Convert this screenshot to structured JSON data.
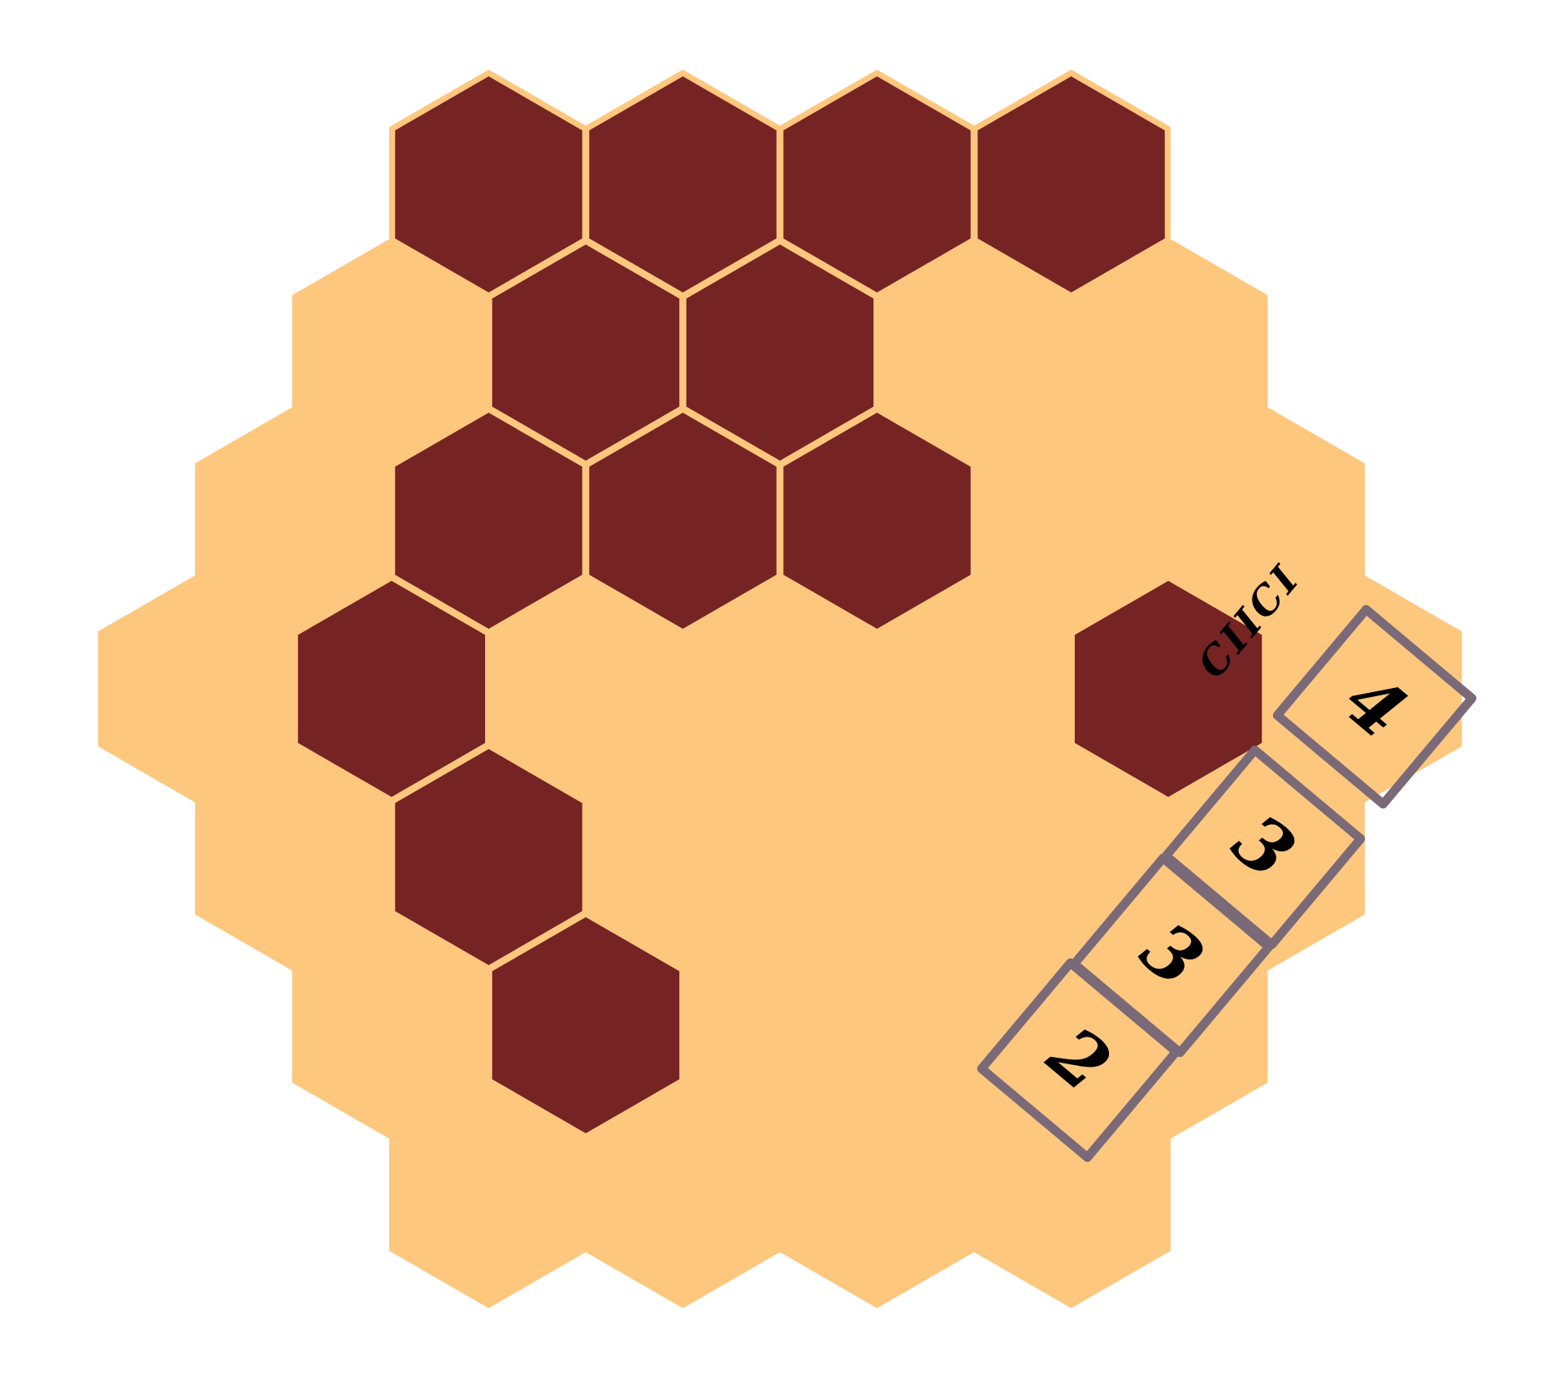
{
  "colors": {
    "background": "#ffffff",
    "board": "#fdc77e",
    "board_edge": "#fdc77e",
    "filled_cell": "#762324",
    "tile_border": "#7a6a78",
    "text": "#000000"
  },
  "board": {
    "grid_radius": 3,
    "filled_cells": [
      {
        "q": 0,
        "r": -3
      },
      {
        "q": 1,
        "r": -3
      },
      {
        "q": 2,
        "r": -3
      },
      {
        "q": 3,
        "r": -3
      },
      {
        "q": 0,
        "r": -2
      },
      {
        "q": 1,
        "r": -2
      },
      {
        "q": -1,
        "r": -1
      },
      {
        "q": 0,
        "r": -1
      },
      {
        "q": 1,
        "r": -1
      },
      {
        "q": -2,
        "r": 0
      },
      {
        "q": 2,
        "r": 0
      },
      {
        "q": -2,
        "r": 1
      },
      {
        "q": -2,
        "r": 2
      }
    ]
  },
  "score_label": "CIICI",
  "tiles": [
    {
      "id": "tile-1",
      "value": "2"
    },
    {
      "id": "tile-2",
      "value": "3"
    },
    {
      "id": "tile-3",
      "value": "3"
    },
    {
      "id": "tile-4",
      "value": "4"
    }
  ]
}
